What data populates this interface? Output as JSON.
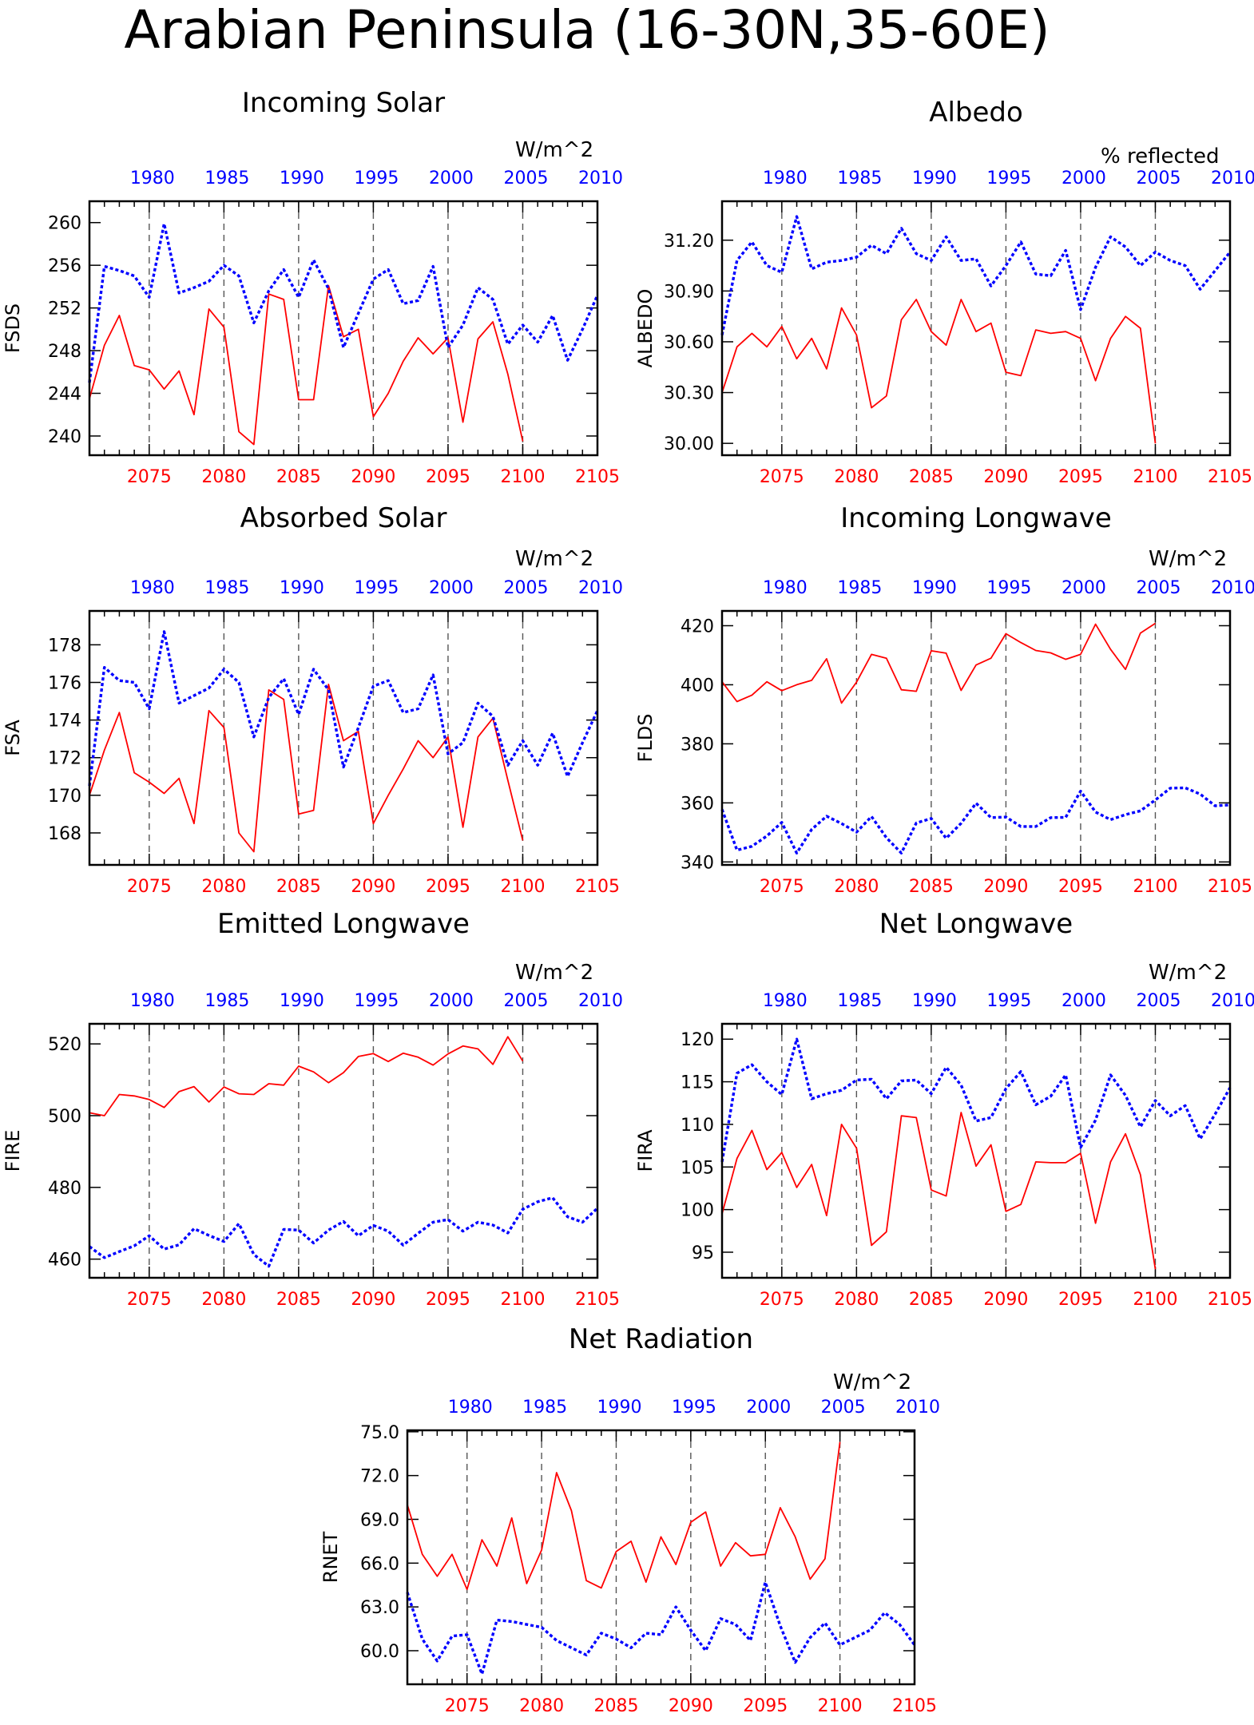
{
  "title": "Arabian Peninsula (16-30N,35-60E)",
  "colors": {
    "future_series": "#ff0000",
    "historical_series": "#0000ff",
    "axes": "#000000"
  },
  "chart_data": [
    {
      "type": "line",
      "title": "Incoming Solar",
      "units": "W/m^2",
      "ylabel": "FSDS",
      "yticks": [
        "260",
        "256",
        "252",
        "248",
        "244",
        "240"
      ],
      "ylim": [
        238.2,
        262.0
      ],
      "xlim_bottom": [
        2071,
        2105
      ],
      "bottom_ticks": [
        "2075",
        "2080",
        "2085",
        "2090",
        "2095",
        "2100",
        "2105"
      ],
      "top_ticks": [
        "1980",
        "1985",
        "1990",
        "1995",
        "2000",
        "2005",
        "2010"
      ],
      "series": [
        {
          "key": "future",
          "x_start": 2071,
          "values": [
            243.5,
            248.5,
            251.3,
            246.6,
            246.2,
            244.4,
            246.1,
            242.0,
            251.9,
            250.2,
            240.4,
            239.2,
            253.3,
            252.8,
            243.4,
            243.4,
            254.1,
            249.3,
            250.0,
            241.8,
            244.0,
            247.0,
            249.2,
            247.7,
            249.2,
            241.3,
            249.1,
            250.7,
            245.8,
            239.5
          ]
        },
        {
          "key": "historical",
          "x_start": 2071,
          "values": [
            245.0,
            255.9,
            255.5,
            255.0,
            253.0,
            259.9,
            253.4,
            253.9,
            254.5,
            256.0,
            255.0,
            250.6,
            253.6,
            255.6,
            253.0,
            256.5,
            253.8,
            248.3,
            251.5,
            254.7,
            255.6,
            252.4,
            252.7,
            255.9,
            248.3,
            250.4,
            253.9,
            252.8,
            248.6,
            250.4,
            248.8,
            251.3,
            247.1,
            250.0,
            253.2
          ]
        }
      ]
    },
    {
      "type": "line",
      "title": "Albedo",
      "units": "% reflected",
      "ylabel": "ALBEDO",
      "yticks": [
        "31.20",
        "30.90",
        "30.60",
        "30.30",
        "30.00"
      ],
      "ylim": [
        29.93,
        31.43
      ],
      "xlim_bottom": [
        2071,
        2105
      ],
      "bottom_ticks": [
        "2075",
        "2080",
        "2085",
        "2090",
        "2095",
        "2100",
        "2105"
      ],
      "top_ticks": [
        "1980",
        "1985",
        "1990",
        "1995",
        "2000",
        "2005",
        "2010"
      ],
      "series": [
        {
          "key": "future",
          "x_start": 2071,
          "values": [
            30.3,
            30.57,
            30.65,
            30.57,
            30.69,
            30.5,
            30.62,
            30.44,
            30.8,
            30.64,
            30.21,
            30.28,
            30.73,
            30.85,
            30.66,
            30.58,
            30.85,
            30.66,
            30.71,
            30.42,
            30.4,
            30.67,
            30.65,
            30.66,
            30.62,
            30.37,
            30.62,
            30.75,
            30.68,
            30.0
          ]
        },
        {
          "key": "historical",
          "x_start": 2071,
          "values": [
            30.64,
            31.08,
            31.19,
            31.05,
            31.01,
            31.34,
            31.03,
            31.07,
            31.08,
            31.1,
            31.17,
            31.12,
            31.27,
            31.12,
            31.08,
            31.22,
            31.08,
            31.09,
            30.93,
            31.05,
            31.19,
            31.0,
            30.99,
            31.14,
            30.79,
            31.04,
            31.22,
            31.16,
            31.05,
            31.13,
            31.08,
            31.05,
            30.91,
            31.02,
            31.13
          ]
        }
      ]
    },
    {
      "type": "line",
      "title": "Absorbed Solar",
      "units": "W/m^2",
      "ylabel": "FSA",
      "yticks": [
        "178",
        "176",
        "174",
        "172",
        "170",
        "168"
      ],
      "ylim": [
        166.3,
        179.8
      ],
      "xlim_bottom": [
        2071,
        2105
      ],
      "bottom_ticks": [
        "2075",
        "2080",
        "2085",
        "2090",
        "2095",
        "2100",
        "2105"
      ],
      "top_ticks": [
        "1980",
        "1985",
        "1990",
        "1995",
        "2000",
        "2005",
        "2010"
      ],
      "series": [
        {
          "key": "future",
          "x_start": 2071,
          "values": [
            170.0,
            172.4,
            174.4,
            171.2,
            170.7,
            170.1,
            170.9,
            168.5,
            174.5,
            173.6,
            168.0,
            167.0,
            175.6,
            175.1,
            169.0,
            169.2,
            175.9,
            172.9,
            173.4,
            168.5,
            170.0,
            171.4,
            172.9,
            172.0,
            173.1,
            168.3,
            173.1,
            174.1,
            170.8,
            167.6
          ]
        },
        {
          "key": "historical",
          "x_start": 2071,
          "values": [
            170.5,
            176.8,
            176.1,
            176.0,
            174.6,
            178.7,
            174.9,
            175.3,
            175.7,
            176.7,
            176.0,
            173.1,
            175.2,
            176.2,
            174.3,
            176.7,
            175.6,
            171.5,
            173.6,
            175.8,
            176.1,
            174.4,
            174.6,
            176.4,
            172.2,
            172.8,
            174.9,
            174.2,
            171.6,
            172.9,
            171.6,
            173.3,
            171.0,
            172.8,
            174.5
          ]
        }
      ]
    },
    {
      "type": "line",
      "title": "Incoming Longwave",
      "units": "W/m^2",
      "ylabel": "FLDS",
      "yticks": [
        "420",
        "400",
        "380",
        "360",
        "340"
      ],
      "ylim": [
        339.0,
        425.0
      ],
      "xlim_bottom": [
        2071,
        2105
      ],
      "bottom_ticks": [
        "2075",
        "2080",
        "2085",
        "2090",
        "2095",
        "2100",
        "2105"
      ],
      "top_ticks": [
        "1980",
        "1985",
        "1990",
        "1995",
        "2000",
        "2005",
        "2010"
      ],
      "series": [
        {
          "key": "future",
          "x_start": 2071,
          "values": [
            401.0,
            394.3,
            396.5,
            401.0,
            398.0,
            400.0,
            401.5,
            408.8,
            393.8,
            400.9,
            410.3,
            409.0,
            398.3,
            397.8,
            411.5,
            410.7,
            398.1,
            406.7,
            409.0,
            417.3,
            414.3,
            411.6,
            410.8,
            408.6,
            410.3,
            420.5,
            412.0,
            405.2,
            417.5,
            420.8
          ]
        },
        {
          "key": "historical",
          "x_start": 2071,
          "values": [
            357.8,
            344.0,
            345.3,
            348.8,
            353.4,
            343.0,
            351.0,
            355.5,
            353.0,
            350.1,
            355.4,
            348.2,
            343.0,
            353.2,
            354.7,
            348.0,
            353.1,
            359.9,
            355.0,
            355.2,
            352.0,
            352.0,
            355.0,
            355.1,
            364.0,
            356.9,
            354.3,
            356.0,
            357.3,
            361.0,
            365.0,
            365.1,
            363.0,
            359.0,
            359.3
          ]
        }
      ]
    },
    {
      "type": "line",
      "title": "Emitted Longwave",
      "units": "W/m^2",
      "ylabel": "FIRE",
      "yticks": [
        "520",
        "500",
        "480",
        "460"
      ],
      "ylim": [
        454.8,
        525.6
      ],
      "xlim_bottom": [
        2071,
        2105
      ],
      "bottom_ticks": [
        "2075",
        "2080",
        "2085",
        "2090",
        "2095",
        "2100",
        "2105"
      ],
      "top_ticks": [
        "1980",
        "1985",
        "1990",
        "1995",
        "2000",
        "2005",
        "2010"
      ],
      "series": [
        {
          "key": "future",
          "x_start": 2071,
          "values": [
            500.8,
            500.0,
            505.9,
            505.5,
            504.5,
            502.3,
            506.7,
            508.1,
            503.8,
            508.0,
            506.1,
            505.9,
            508.9,
            508.5,
            513.8,
            512.2,
            509.2,
            512.0,
            516.5,
            517.3,
            515.1,
            517.4,
            516.3,
            514.1,
            517.2,
            519.4,
            518.6,
            514.3,
            522.0,
            515.2
          ]
        },
        {
          "key": "historical",
          "x_start": 2071,
          "values": [
            463.5,
            460.4,
            462.1,
            463.7,
            466.5,
            462.8,
            464.0,
            468.5,
            466.6,
            464.9,
            469.9,
            461.3,
            458.0,
            468.3,
            468.1,
            464.5,
            468.1,
            470.5,
            466.5,
            469.4,
            467.8,
            463.9,
            467.2,
            470.3,
            471.0,
            467.8,
            470.3,
            469.5,
            467.3,
            473.9,
            476.0,
            477.1,
            471.8,
            470.3,
            474.2
          ]
        }
      ]
    },
    {
      "type": "line",
      "title": "Net Longwave",
      "units": "W/m^2",
      "ylabel": "FIRA",
      "yticks": [
        "120",
        "115",
        "110",
        "105",
        "100",
        "95"
      ],
      "ylim": [
        92.0,
        121.8
      ],
      "xlim_bottom": [
        2071,
        2105
      ],
      "bottom_ticks": [
        "2075",
        "2080",
        "2085",
        "2090",
        "2095",
        "2100",
        "2105"
      ],
      "top_ticks": [
        "1980",
        "1985",
        "1990",
        "1995",
        "2000",
        "2005",
        "2010"
      ],
      "series": [
        {
          "key": "future",
          "x_start": 2071,
          "values": [
            99.5,
            106.0,
            109.3,
            104.7,
            106.7,
            102.6,
            105.3,
            99.3,
            110.0,
            107.2,
            95.8,
            97.4,
            111.0,
            110.8,
            102.3,
            101.6,
            111.4,
            105.1,
            107.6,
            99.8,
            100.6,
            105.6,
            105.5,
            105.5,
            106.6,
            98.4,
            105.6,
            108.9,
            104.1,
            93.0
          ]
        },
        {
          "key": "historical",
          "x_start": 2071,
          "values": [
            105.6,
            116.0,
            117.0,
            115.0,
            113.5,
            120.0,
            113.0,
            113.6,
            114.0,
            115.2,
            115.3,
            113.0,
            115.1,
            115.2,
            113.6,
            116.7,
            114.6,
            110.4,
            110.8,
            114.2,
            116.2,
            112.3,
            113.3,
            115.8,
            107.3,
            110.5,
            115.8,
            113.4,
            109.7,
            112.8,
            111.0,
            112.2,
            108.3,
            111.2,
            114.3
          ]
        }
      ]
    },
    {
      "type": "line",
      "title": "Net Radiation",
      "units": "W/m^2",
      "ylabel": "RNET",
      "yticks": [
        "75.0",
        "72.0",
        "69.0",
        "66.0",
        "63.0",
        "60.0"
      ],
      "ylim": [
        57.7,
        75.1
      ],
      "xlim_bottom": [
        2071,
        2105
      ],
      "bottom_ticks": [
        "2075",
        "2080",
        "2085",
        "2090",
        "2095",
        "2100",
        "2105"
      ],
      "top_ticks": [
        "1980",
        "1985",
        "1990",
        "1995",
        "2000",
        "2005",
        "2010"
      ],
      "series": [
        {
          "key": "future",
          "x_start": 2071,
          "values": [
            70.0,
            66.6,
            65.1,
            66.6,
            64.2,
            67.6,
            65.8,
            69.1,
            64.6,
            66.9,
            72.2,
            69.6,
            64.8,
            64.3,
            66.8,
            67.5,
            64.7,
            67.8,
            65.9,
            68.8,
            69.5,
            65.8,
            67.4,
            66.5,
            66.6,
            69.8,
            67.8,
            64.9,
            66.3,
            74.3
          ]
        },
        {
          "key": "historical",
          "x_start": 2071,
          "values": [
            64.0,
            60.8,
            59.3,
            61.0,
            61.1,
            58.4,
            62.1,
            62.0,
            61.8,
            61.6,
            60.7,
            60.2,
            59.7,
            61.2,
            60.8,
            60.2,
            61.2,
            61.1,
            63.0,
            61.4,
            60.0,
            62.2,
            61.8,
            60.7,
            64.7,
            61.7,
            59.2,
            60.9,
            61.9,
            60.4,
            60.9,
            61.4,
            62.6,
            61.8,
            60.4
          ]
        }
      ]
    }
  ]
}
